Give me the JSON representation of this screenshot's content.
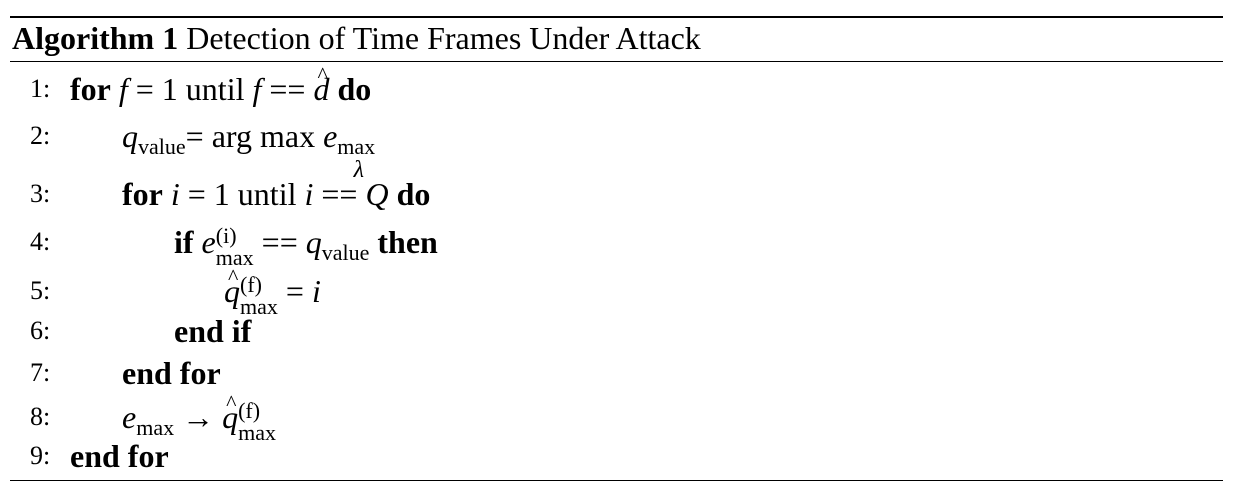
{
  "caption": {
    "label": "Algorithm 1",
    "title": "Detection of Time Frames Under Attack"
  },
  "lines": [
    {
      "num": "1:",
      "for": "for",
      "var": "f",
      "eq": " = 1 until ",
      "var2": "f",
      "op": " == ",
      "dhat": "d",
      "do": " do"
    },
    {
      "num": "2:",
      "q": "q",
      "q_sub": "value",
      "eq": " = arg max ",
      "under": "λ",
      "e": "e",
      "e_sub": "max"
    },
    {
      "num": "3:",
      "for": "for",
      "var": "i",
      "eq": " = 1 until ",
      "var2": "i",
      "op": " == ",
      "Q": "Q",
      "do": " do"
    },
    {
      "num": "4:",
      "if": "if",
      "e": "e",
      "sup": "(i)",
      "sub": "max",
      "op": " == ",
      "q": "q",
      "q_sub": "value",
      "then": " then"
    },
    {
      "num": "5:",
      "q": "q",
      "sup": "(f)",
      "sub": "max",
      "eq": " = ",
      "i": "i"
    },
    {
      "num": "6:",
      "text": "end if"
    },
    {
      "num": "7:",
      "text": "end for"
    },
    {
      "num": "8:",
      "e": "e",
      "e_sub": "max",
      "arrow": " → ",
      "q": "q",
      "sup": "(f)",
      "sub": "max"
    },
    {
      "num": "9:",
      "text": "end for"
    }
  ]
}
